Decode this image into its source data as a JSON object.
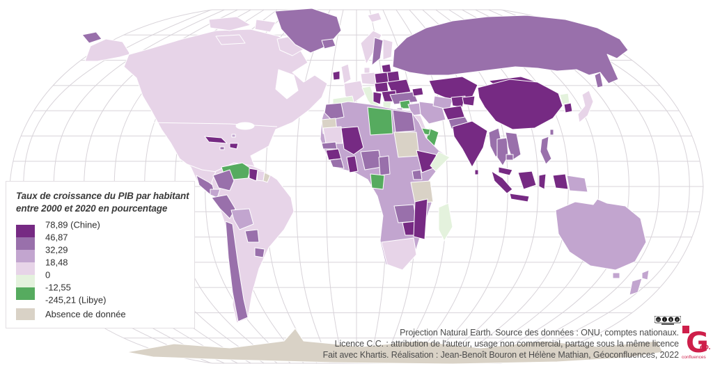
{
  "palette": {
    "bin1": "#762a83",
    "bin2": "#9970ab",
    "bin3": "#c2a5cf",
    "bin4": "#e7d4e8",
    "bin5": "#e4f2dd",
    "bin6": "#56ab5f",
    "no_data": "#d9d2c6",
    "graticule": "#d8d3d9",
    "attr": "#4b4b4b",
    "logo_red": "#ce1f4a"
  },
  "legend": {
    "title_line1": "Taux de croissance du PIB par habitant",
    "title_line2": "entre 2000 et 2020 en pourcentage",
    "break_labels": [
      "78,89 (Chine)",
      "46,87",
      "32,29",
      "18,48",
      "0",
      "-12,55",
      "-245,21 (Libye)"
    ],
    "no_data_label": "Absence de donnée"
  },
  "attribution": {
    "line1": "Projection Natural Earth. Source des données : ONU, comptes nationaux.",
    "line2": "Licence C.C. : attribution de l'auteur, usage non commercial, partage sous la même licence",
    "line3": "Fait avec Khartis. Réalisation : Jean-Benoît Bouron et Hélène Mathian, Géoconfluences, 2022"
  },
  "cc_badge": {
    "icons": [
      "cc",
      "by",
      "nc",
      "sa"
    ]
  },
  "logo": {
    "g": "G",
    "eo": "éo.",
    "sub": "confluences"
  },
  "chart_data": {
    "type": "choropleth_map",
    "title": "Taux de croissance du PIB par habitant entre 2000 et 2020 en pourcentage",
    "unit": "pourcentage",
    "projection": "Natural Earth",
    "source": "ONU, comptes nationaux",
    "breaks": [
      78.89,
      46.87,
      32.29,
      18.48,
      0,
      -12.55,
      -245.21
    ],
    "bins": [
      {
        "range": "46,87 à 78,89",
        "color": "#762a83"
      },
      {
        "range": "32,29 à 46,87",
        "color": "#9970ab"
      },
      {
        "range": "18,48 à 32,29",
        "color": "#c2a5cf"
      },
      {
        "range": "0 à 18,48",
        "color": "#e7d4e8"
      },
      {
        "range": "-12,55 à 0",
        "color": "#e4f2dd"
      },
      {
        "range": "-245,21 à -12,55",
        "color": "#56ab5f"
      }
    ],
    "no_data": {
      "label": "Absence de donnée",
      "color": "#d9d2c6"
    },
    "extremes": {
      "max_country": "Chine",
      "max_value": 78.89,
      "min_country": "Libye",
      "min_value": -245.21
    },
    "legend_position": "left-middle"
  }
}
